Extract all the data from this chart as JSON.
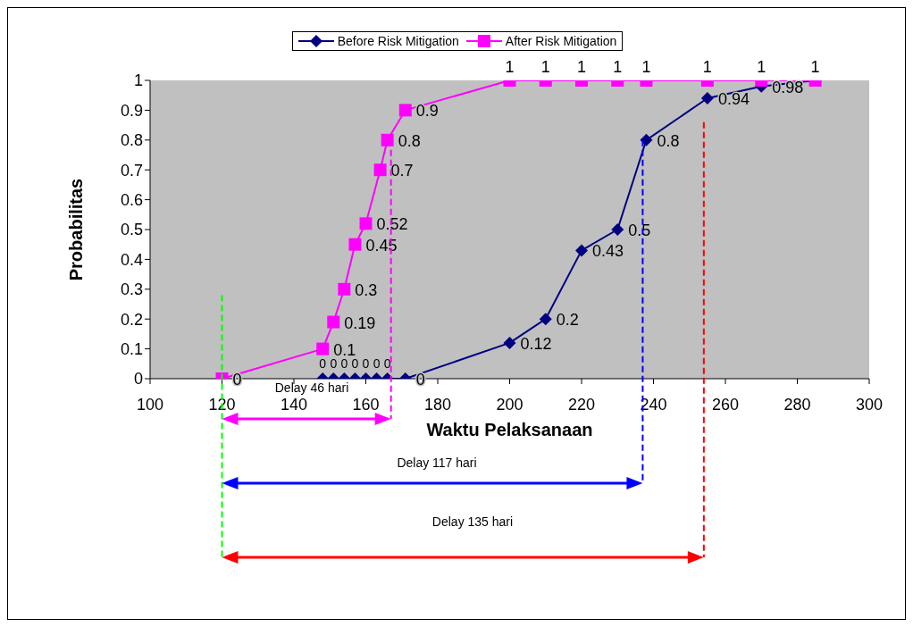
{
  "chart_data": {
    "type": "line",
    "xlabel": "Waktu Pelaksanaan",
    "ylabel": "Probabilitas",
    "series": [
      {
        "name": "Before Risk Mitigation",
        "color": "#000080",
        "marker": "diamond",
        "x": [
          148,
          151,
          154,
          157,
          160,
          163,
          166,
          171,
          200,
          210,
          220,
          230,
          238,
          255,
          270,
          285
        ],
        "values": [
          0,
          0,
          0,
          0,
          0,
          0,
          0,
          0,
          0.12,
          0.2,
          0.43,
          0.5,
          0.8,
          0.94,
          0.98,
          1
        ],
        "value_labels": [
          "0",
          "0",
          "0",
          "0",
          "0",
          "0",
          "0",
          "0",
          "0.12",
          "0.2",
          "0.43",
          "0.5",
          "0.8",
          "0.94",
          "0.98",
          null
        ]
      },
      {
        "name": "After Risk Mitigation",
        "color": "#ff00ff",
        "marker": "square",
        "x": [
          120,
          148,
          151,
          154,
          157,
          160,
          164,
          166,
          171,
          200,
          210,
          220,
          230,
          238,
          255,
          270,
          285
        ],
        "values": [
          0,
          0.1,
          0.19,
          0.3,
          0.45,
          0.52,
          0.7,
          0.8,
          0.9,
          1,
          1,
          1,
          1,
          1,
          1,
          1,
          1
        ]
      }
    ],
    "xlim": [
      100,
      300
    ],
    "xticks": [
      100,
      120,
      140,
      160,
      180,
      200,
      220,
      240,
      260,
      280,
      300
    ],
    "ylim": [
      0,
      1
    ],
    "yticks": [
      0,
      0.1,
      0.2,
      0.3,
      0.4,
      0.5,
      0.6,
      0.7,
      0.8,
      0.9,
      1
    ],
    "data_labels": true,
    "grid": false,
    "legend": "top",
    "ref_lines": [
      {
        "axis": "x",
        "value": 120,
        "color": "#00ff00",
        "line_style": "dashed"
      },
      {
        "axis": "x",
        "value": 167,
        "color": "#ff00ff",
        "line_style": "dashed"
      },
      {
        "axis": "x",
        "value": 237,
        "color": "#0000ff",
        "line_style": "dashed"
      },
      {
        "axis": "x",
        "value": 254,
        "color": "#ff0000",
        "line_style": "dashed"
      }
    ],
    "annotations": [
      "Delay 46 hari",
      "Delay 117 hari",
      "Delay 135 hari"
    ]
  }
}
